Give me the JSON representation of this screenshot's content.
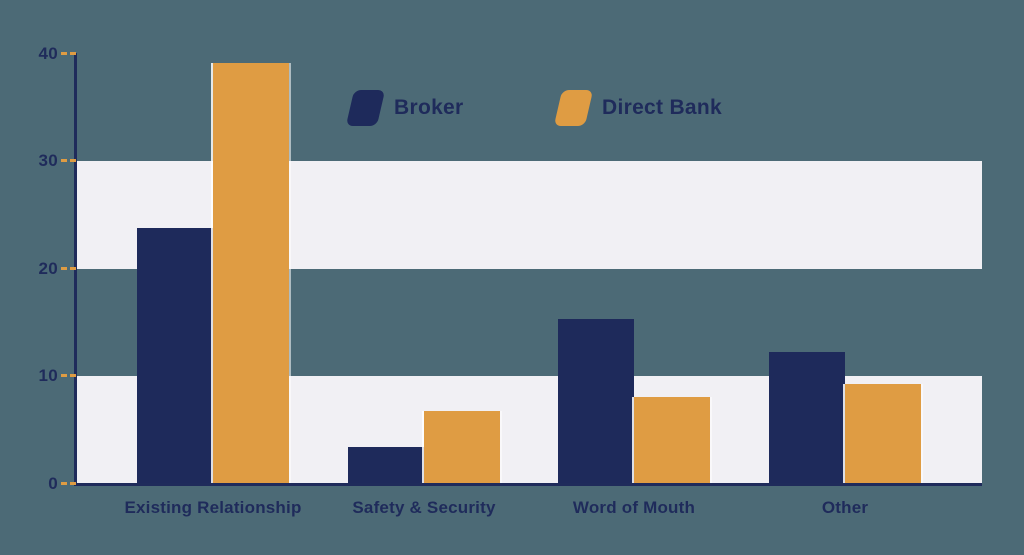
{
  "canvas": {
    "background_color": "#4C6A76"
  },
  "legend": {
    "items": [
      {
        "label": "Broker",
        "color": "#1E2A5B"
      },
      {
        "label": "Direct Bank",
        "color": "#DF9C43"
      }
    ]
  },
  "chart_data": {
    "type": "bar",
    "categories": [
      "Existing Relationship",
      "Safety & Security",
      "Word of Mouth",
      "Other"
    ],
    "series": [
      {
        "name": "Broker",
        "color": "#1E2A5B",
        "values": [
          23.8,
          3.4,
          15.3,
          12.3
        ]
      },
      {
        "name": "Direct Bank",
        "color": "#DF9C43",
        "values": [
          39.1,
          6.8,
          8.1,
          9.3
        ]
      }
    ],
    "ylim": [
      0,
      40
    ],
    "yticks": [
      0,
      10,
      20,
      30,
      40
    ],
    "stripe_bands": [
      [
        0,
        10
      ],
      [
        20,
        30
      ]
    ],
    "stripe_color": "#F1F0F4",
    "axis_color": "#1F2B5B",
    "tick_color": "#DF9C43",
    "label_color": "#1F2B5B",
    "grid": false,
    "legend_position": "top-center"
  }
}
